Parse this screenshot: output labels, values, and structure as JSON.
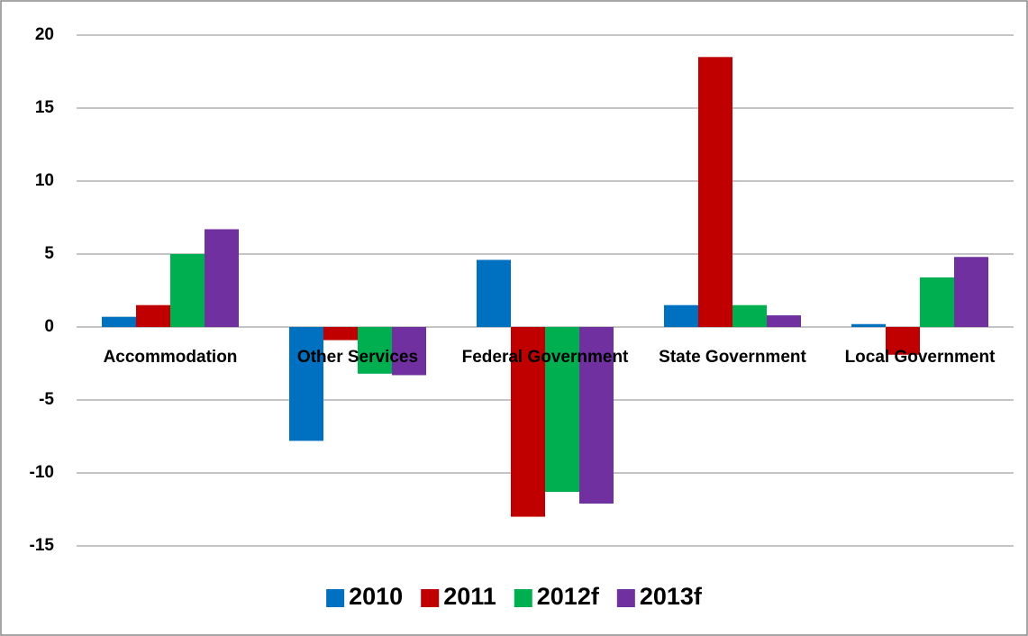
{
  "chart_data": {
    "type": "bar",
    "categories": [
      "Accommodation",
      "Other Services",
      "Federal Government",
      "State Government",
      "Local Government"
    ],
    "series": [
      {
        "name": "2010",
        "color": "#0070C0",
        "values": [
          0.7,
          -7.8,
          4.6,
          1.5,
          0.2
        ]
      },
      {
        "name": "2011",
        "color": "#C00000",
        "values": [
          1.5,
          -0.9,
          -13.0,
          18.5,
          -1.9
        ]
      },
      {
        "name": "2012f",
        "color": "#00B050",
        "values": [
          5.0,
          -3.2,
          -11.3,
          1.5,
          3.4
        ]
      },
      {
        "name": "2013f",
        "color": "#7030A0",
        "values": [
          6.7,
          -3.3,
          -12.1,
          0.8,
          4.8
        ]
      }
    ],
    "ylim": [
      -15,
      20
    ],
    "yticks": [
      -15,
      -10,
      -5,
      0,
      5,
      10,
      15,
      20
    ],
    "grid": true,
    "legend": "bottom"
  }
}
